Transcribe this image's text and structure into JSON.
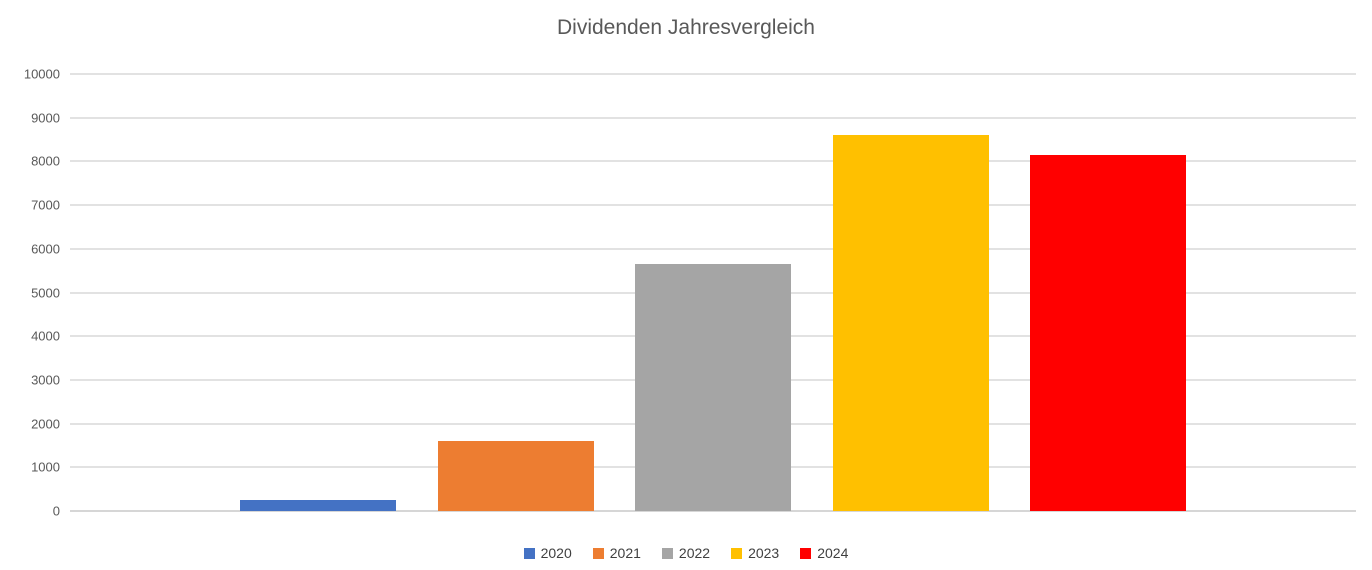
{
  "chart_data": {
    "type": "bar",
    "title": "Dividenden Jahresvergleich",
    "xlabel": "",
    "ylabel": "",
    "ylim": [
      0,
      10000
    ],
    "yticks": [
      0,
      1000,
      2000,
      3000,
      4000,
      5000,
      6000,
      7000,
      8000,
      9000,
      10000
    ],
    "grid": true,
    "legend_position": "bottom",
    "series": [
      {
        "name": "2020",
        "value": 250,
        "color": "#4472C4"
      },
      {
        "name": "2021",
        "value": 1600,
        "color": "#ED7D31"
      },
      {
        "name": "2022",
        "value": 5650,
        "color": "#A5A5A5"
      },
      {
        "name": "2023",
        "value": 8600,
        "color": "#FFC000"
      },
      {
        "name": "2024",
        "value": 8150,
        "color": "#FF0000"
      }
    ],
    "colors": {
      "title_text": "#595959",
      "tick_text": "#595959",
      "legend_text": "#404040",
      "gridline": "#e2e2e2"
    }
  }
}
